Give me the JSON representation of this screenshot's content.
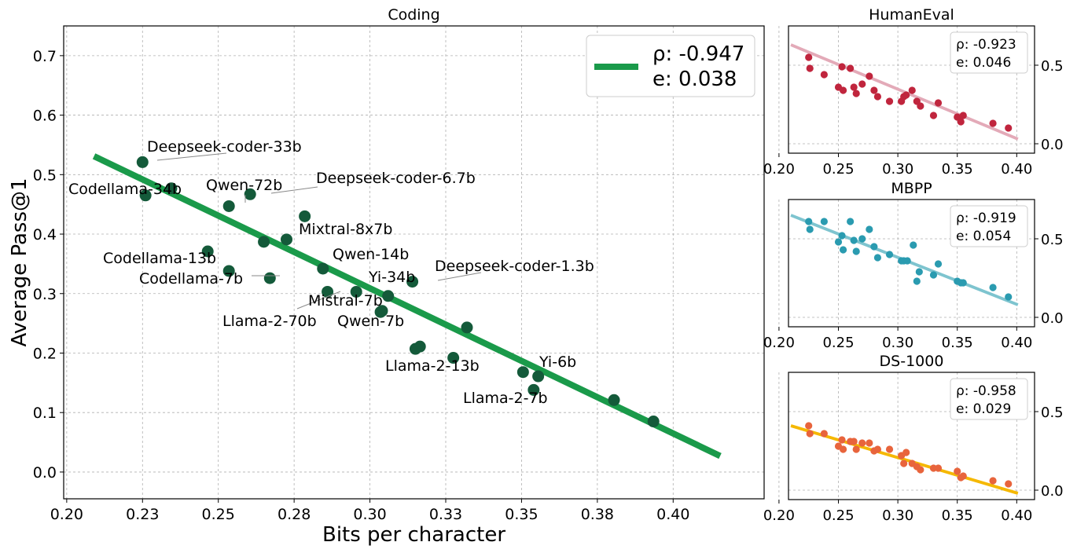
{
  "chart_data": [
    {
      "type": "scatter",
      "title": "Coding",
      "xlabel": "Bits per character",
      "ylabel": "Average Pass@1",
      "xlim": [
        0.199,
        0.43
      ],
      "ylim": [
        -0.045,
        0.75
      ],
      "x_ticks": [
        0.2,
        0.225,
        0.25,
        0.275,
        0.3,
        0.325,
        0.35,
        0.375,
        0.4
      ],
      "x_tick_labels": [
        "0.20",
        "0.23",
        "0.25",
        "0.28",
        "0.30",
        "0.33",
        "0.35",
        "0.38",
        "0.40"
      ],
      "y_ticks": [
        0.0,
        0.1,
        0.2,
        0.3,
        0.4,
        0.5,
        0.6,
        0.7
      ],
      "y_tick_labels": [
        "0.0",
        "0.1",
        "0.2",
        "0.3",
        "0.4",
        "0.5",
        "0.6",
        "0.7"
      ],
      "grid": true,
      "color": "#145a3a",
      "fit_color": "#1a9a4a",
      "fit_line": {
        "x": [
          0.209,
          0.4155
        ],
        "y": [
          0.531,
          0.027
        ]
      },
      "legend": {
        "rho": "ρ: -0.947",
        "e": "e: 0.038",
        "position": "top-right"
      },
      "points": [
        {
          "x": 0.225,
          "y": 0.521,
          "label": "Deepseek-coder-33b"
        },
        {
          "x": 0.226,
          "y": 0.465,
          "label": "Codellama-34b"
        },
        {
          "x": 0.2345,
          "y": 0.477,
          "label": ""
        },
        {
          "x": 0.2465,
          "y": 0.371,
          "label": "Codellama-13b"
        },
        {
          "x": 0.2535,
          "y": 0.447,
          "label": "Qwen-72b"
        },
        {
          "x": 0.2535,
          "y": 0.338,
          "label": "Codellama-7b"
        },
        {
          "x": 0.2605,
          "y": 0.467,
          "label": "Deepseek-coder-6.7b"
        },
        {
          "x": 0.265,
          "y": 0.387,
          "label": ""
        },
        {
          "x": 0.267,
          "y": 0.326,
          "label": ""
        },
        {
          "x": 0.2725,
          "y": 0.391,
          "label": "Mixtral-8x7b"
        },
        {
          "x": 0.2785,
          "y": 0.43,
          "label": ""
        },
        {
          "x": 0.2845,
          "y": 0.342,
          "label": "Qwen-14b"
        },
        {
          "x": 0.286,
          "y": 0.303,
          "label": "Llama-2-70b"
        },
        {
          "x": 0.2955,
          "y": 0.303,
          "label": "Mistral-7b"
        },
        {
          "x": 0.3035,
          "y": 0.269,
          "label": "Qwen-7b"
        },
        {
          "x": 0.304,
          "y": 0.271,
          "label": ""
        },
        {
          "x": 0.306,
          "y": 0.296,
          "label": "Yi-34b"
        },
        {
          "x": 0.314,
          "y": 0.32,
          "label": "Deepseek-coder-1.3b"
        },
        {
          "x": 0.315,
          "y": 0.207,
          "label": ""
        },
        {
          "x": 0.3165,
          "y": 0.211,
          "label": "Llama-2-13b"
        },
        {
          "x": 0.3275,
          "y": 0.192,
          "label": ""
        },
        {
          "x": 0.332,
          "y": 0.243,
          "label": ""
        },
        {
          "x": 0.3505,
          "y": 0.168,
          "label": "Yi-6b"
        },
        {
          "x": 0.354,
          "y": 0.138,
          "label": "Llama-2-7b"
        },
        {
          "x": 0.3555,
          "y": 0.161,
          "label": ""
        },
        {
          "x": 0.3805,
          "y": 0.121,
          "label": ""
        },
        {
          "x": 0.3935,
          "y": 0.085,
          "label": ""
        }
      ]
    },
    {
      "type": "scatter",
      "title": "HumanEval",
      "xlim": [
        0.208,
        0.415
      ],
      "ylim": [
        -0.06,
        0.75
      ],
      "x_ticks": [
        0.2,
        0.25,
        0.3,
        0.35,
        0.4
      ],
      "x_tick_labels": [
        "0.20",
        "0.25",
        "0.30",
        "0.35",
        "0.40"
      ],
      "y_ticks": [
        0.0,
        0.5
      ],
      "y_tick_labels": [
        "0.0",
        "0.5"
      ],
      "grid": true,
      "color": "#c0253d",
      "fit_color": "#e3aab8",
      "fit_line": {
        "x": [
          0.21,
          0.401
        ],
        "y": [
          0.63,
          0.03
        ]
      },
      "legend": {
        "rho": "ρ: -0.923",
        "e": "e: 0.046",
        "position": "top-right"
      },
      "points": [
        {
          "x": 0.225,
          "y": 0.55
        },
        {
          "x": 0.226,
          "y": 0.48
        },
        {
          "x": 0.238,
          "y": 0.44
        },
        {
          "x": 0.25,
          "y": 0.36
        },
        {
          "x": 0.253,
          "y": 0.49
        },
        {
          "x": 0.254,
          "y": 0.34
        },
        {
          "x": 0.26,
          "y": 0.48
        },
        {
          "x": 0.263,
          "y": 0.36
        },
        {
          "x": 0.265,
          "y": 0.32
        },
        {
          "x": 0.27,
          "y": 0.38
        },
        {
          "x": 0.276,
          "y": 0.43
        },
        {
          "x": 0.28,
          "y": 0.34
        },
        {
          "x": 0.283,
          "y": 0.3
        },
        {
          "x": 0.293,
          "y": 0.27
        },
        {
          "x": 0.303,
          "y": 0.27
        },
        {
          "x": 0.305,
          "y": 0.3
        },
        {
          "x": 0.307,
          "y": 0.31
        },
        {
          "x": 0.312,
          "y": 0.34
        },
        {
          "x": 0.316,
          "y": 0.27
        },
        {
          "x": 0.319,
          "y": 0.24
        },
        {
          "x": 0.33,
          "y": 0.18
        },
        {
          "x": 0.334,
          "y": 0.26
        },
        {
          "x": 0.35,
          "y": 0.17
        },
        {
          "x": 0.353,
          "y": 0.14
        },
        {
          "x": 0.355,
          "y": 0.18
        },
        {
          "x": 0.38,
          "y": 0.13
        },
        {
          "x": 0.393,
          "y": 0.1
        }
      ]
    },
    {
      "type": "scatter",
      "title": "MBPP",
      "xlim": [
        0.208,
        0.415
      ],
      "ylim": [
        -0.06,
        0.75
      ],
      "x_ticks": [
        0.2,
        0.25,
        0.3,
        0.35,
        0.4
      ],
      "x_tick_labels": [
        "0.20",
        "0.25",
        "0.30",
        "0.35",
        "0.40"
      ],
      "y_ticks": [
        0.0,
        0.5
      ],
      "y_tick_labels": [
        "0.0",
        "0.5"
      ],
      "grid": true,
      "color": "#2a9bb0",
      "fit_color": "#7ec4cf",
      "fit_line": {
        "x": [
          0.21,
          0.401
        ],
        "y": [
          0.65,
          0.08
        ]
      },
      "legend": {
        "rho": "ρ: -0.919",
        "e": "e: 0.054",
        "position": "top-right"
      },
      "points": [
        {
          "x": 0.225,
          "y": 0.61
        },
        {
          "x": 0.226,
          "y": 0.56
        },
        {
          "x": 0.238,
          "y": 0.61
        },
        {
          "x": 0.25,
          "y": 0.48
        },
        {
          "x": 0.253,
          "y": 0.52
        },
        {
          "x": 0.254,
          "y": 0.43
        },
        {
          "x": 0.26,
          "y": 0.61
        },
        {
          "x": 0.263,
          "y": 0.49
        },
        {
          "x": 0.265,
          "y": 0.42
        },
        {
          "x": 0.27,
          "y": 0.5
        },
        {
          "x": 0.276,
          "y": 0.56
        },
        {
          "x": 0.28,
          "y": 0.45
        },
        {
          "x": 0.283,
          "y": 0.38
        },
        {
          "x": 0.293,
          "y": 0.4
        },
        {
          "x": 0.303,
          "y": 0.36
        },
        {
          "x": 0.305,
          "y": 0.36
        },
        {
          "x": 0.308,
          "y": 0.36
        },
        {
          "x": 0.313,
          "y": 0.46
        },
        {
          "x": 0.316,
          "y": 0.23
        },
        {
          "x": 0.318,
          "y": 0.29
        },
        {
          "x": 0.33,
          "y": 0.27
        },
        {
          "x": 0.334,
          "y": 0.34
        },
        {
          "x": 0.35,
          "y": 0.23
        },
        {
          "x": 0.353,
          "y": 0.22
        },
        {
          "x": 0.355,
          "y": 0.22
        },
        {
          "x": 0.38,
          "y": 0.19
        },
        {
          "x": 0.393,
          "y": 0.13
        }
      ]
    },
    {
      "type": "scatter",
      "title": "DS-1000",
      "xlim": [
        0.208,
        0.415
      ],
      "ylim": [
        -0.06,
        0.75
      ],
      "x_ticks": [
        0.2,
        0.25,
        0.3,
        0.35,
        0.4
      ],
      "x_tick_labels": [
        "0.20",
        "0.25",
        "0.30",
        "0.35",
        "0.40"
      ],
      "y_ticks": [
        0.0,
        0.5
      ],
      "y_tick_labels": [
        "0.0",
        "0.5"
      ],
      "grid": true,
      "color": "#e8643c",
      "fit_color": "#f5b800",
      "fit_line": {
        "x": [
          0.21,
          0.401
        ],
        "y": [
          0.41,
          -0.02
        ]
      },
      "legend": {
        "rho": "ρ: -0.958",
        "e": "e: 0.029",
        "position": "top-right"
      },
      "points": [
        {
          "x": 0.225,
          "y": 0.41
        },
        {
          "x": 0.226,
          "y": 0.36
        },
        {
          "x": 0.238,
          "y": 0.36
        },
        {
          "x": 0.25,
          "y": 0.28
        },
        {
          "x": 0.253,
          "y": 0.32
        },
        {
          "x": 0.254,
          "y": 0.26
        },
        {
          "x": 0.26,
          "y": 0.31
        },
        {
          "x": 0.263,
          "y": 0.31
        },
        {
          "x": 0.265,
          "y": 0.26
        },
        {
          "x": 0.27,
          "y": 0.3
        },
        {
          "x": 0.276,
          "y": 0.3
        },
        {
          "x": 0.28,
          "y": 0.25
        },
        {
          "x": 0.283,
          "y": 0.26
        },
        {
          "x": 0.293,
          "y": 0.26
        },
        {
          "x": 0.303,
          "y": 0.22
        },
        {
          "x": 0.305,
          "y": 0.17
        },
        {
          "x": 0.307,
          "y": 0.24
        },
        {
          "x": 0.312,
          "y": 0.17
        },
        {
          "x": 0.316,
          "y": 0.15
        },
        {
          "x": 0.319,
          "y": 0.13
        },
        {
          "x": 0.33,
          "y": 0.14
        },
        {
          "x": 0.334,
          "y": 0.14
        },
        {
          "x": 0.35,
          "y": 0.12
        },
        {
          "x": 0.353,
          "y": 0.08
        },
        {
          "x": 0.355,
          "y": 0.09
        },
        {
          "x": 0.38,
          "y": 0.06
        },
        {
          "x": 0.393,
          "y": 0.04
        }
      ]
    }
  ]
}
